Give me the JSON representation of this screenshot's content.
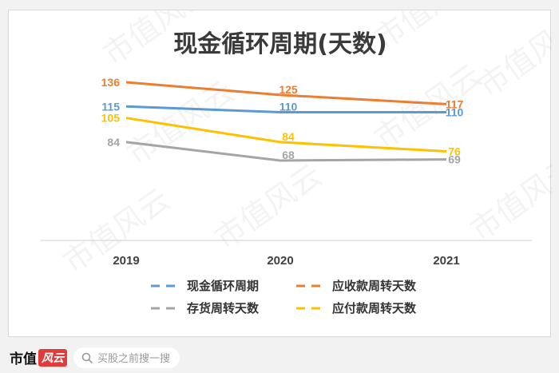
{
  "chart_data": {
    "type": "line",
    "title": "现金循环周期(天数)",
    "categories": [
      "2019",
      "2020",
      "2021"
    ],
    "ylim": [
      0,
      160
    ],
    "series": [
      {
        "name": "现金循环周期",
        "color": "#5b9bd5",
        "values": [
          115,
          110,
          110
        ],
        "labels": [
          "115",
          "110",
          "110"
        ]
      },
      {
        "name": "应收款周转天数",
        "color": "#ed7d31",
        "values": [
          136,
          125,
          117
        ],
        "labels": [
          "136",
          "125",
          "117"
        ]
      },
      {
        "name": "存货周转天数",
        "color": "#a5a5a5",
        "values": [
          84,
          68,
          69
        ],
        "labels": [
          "84",
          "68",
          "69"
        ]
      },
      {
        "name": "应付款周转天数",
        "color": "#ffc000",
        "values": [
          105,
          84,
          76
        ],
        "labels": [
          "105",
          "84",
          "76"
        ]
      }
    ],
    "legend_position": "bottom",
    "grid": false
  },
  "watermark": {
    "text": "市值风云"
  },
  "footer": {
    "brand_name": "市值",
    "brand_badge": "风云",
    "search_placeholder": "买股之前搜一搜"
  }
}
